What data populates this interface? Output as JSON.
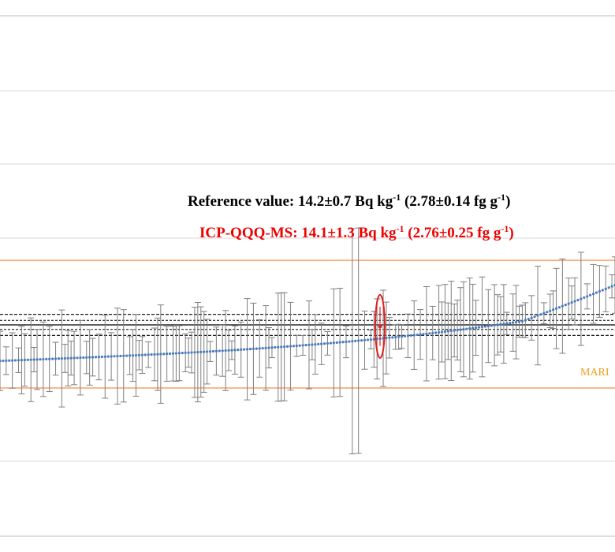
{
  "chart_data": {
    "type": "scatter",
    "title": "",
    "xlabel": "",
    "ylabel": "",
    "reference_value": 14.2,
    "reference_uncertainty": 0.7,
    "limit_band": [
      10.0,
      18.5
    ],
    "highlight_value": 14.1,
    "highlight_uncertainty": 1.3,
    "annotations": {
      "reference_prefix": "Reference value: 14.2±0.7 Bq kg",
      "reference_mid": " (2.78±0.14 fg g",
      "reference_end": ")",
      "icp_prefix": "ICP-QQQ-MS: 14.1±1.3 Bq kg",
      "icp_mid": " (2.76±0.25 fg g",
      "icp_end": ")",
      "superscript": "-1",
      "marker_label": "MARI"
    },
    "grid": true,
    "colors": {
      "points": "#4a7ab8",
      "error_bars": "#7f7f7f",
      "reference_line": "#000000",
      "limit_band": "#f4a36a",
      "highlight": "#e02020",
      "marker_text": "#f0a020",
      "gridline": "#d9d9d9"
    }
  }
}
